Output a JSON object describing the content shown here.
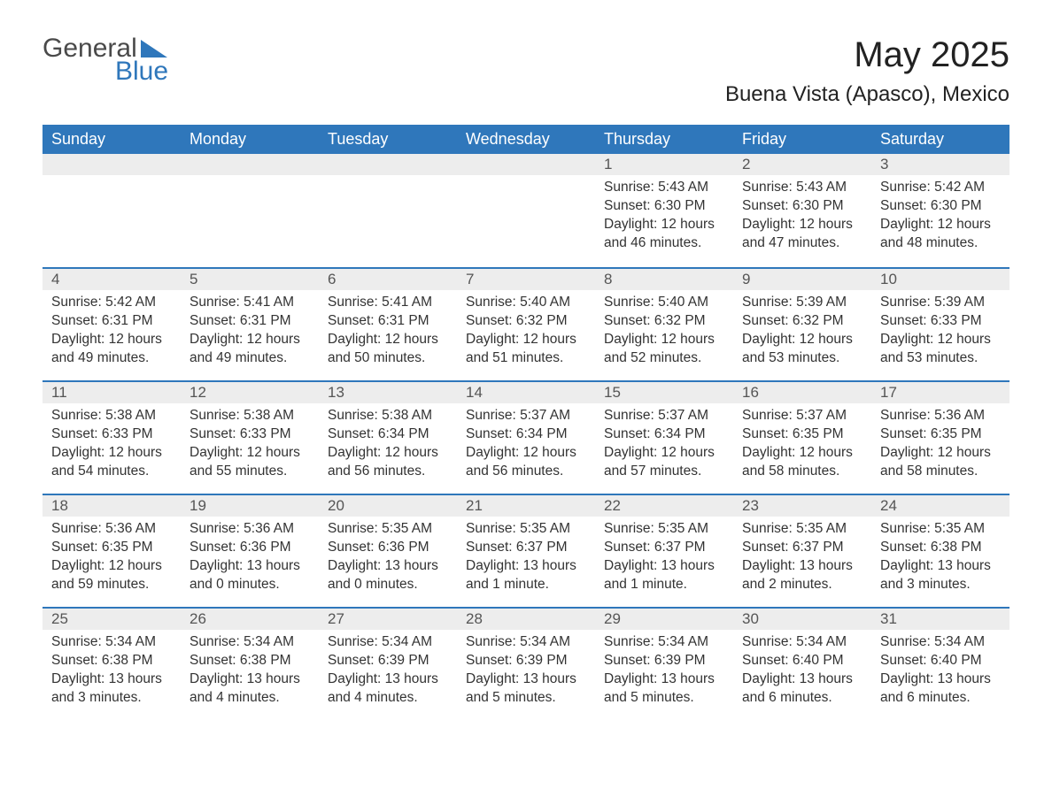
{
  "brand": {
    "word1": "General",
    "word2": "Blue"
  },
  "title": "May 2025",
  "location": "Buena Vista (Apasco), Mexico",
  "colors": {
    "header_bg": "#2f77bb",
    "header_text": "#ffffff",
    "daynum_bg": "#ededed",
    "row_divider": "#2f77bb",
    "body_text": "#333333",
    "page_bg": "#ffffff"
  },
  "weekdays": [
    "Sunday",
    "Monday",
    "Tuesday",
    "Wednesday",
    "Thursday",
    "Friday",
    "Saturday"
  ],
  "first_day_col": 4,
  "days": [
    {
      "n": 1,
      "sunrise": "5:43 AM",
      "sunset": "6:30 PM",
      "daylight": "12 hours and 46 minutes."
    },
    {
      "n": 2,
      "sunrise": "5:43 AM",
      "sunset": "6:30 PM",
      "daylight": "12 hours and 47 minutes."
    },
    {
      "n": 3,
      "sunrise": "5:42 AM",
      "sunset": "6:30 PM",
      "daylight": "12 hours and 48 minutes."
    },
    {
      "n": 4,
      "sunrise": "5:42 AM",
      "sunset": "6:31 PM",
      "daylight": "12 hours and 49 minutes."
    },
    {
      "n": 5,
      "sunrise": "5:41 AM",
      "sunset": "6:31 PM",
      "daylight": "12 hours and 49 minutes."
    },
    {
      "n": 6,
      "sunrise": "5:41 AM",
      "sunset": "6:31 PM",
      "daylight": "12 hours and 50 minutes."
    },
    {
      "n": 7,
      "sunrise": "5:40 AM",
      "sunset": "6:32 PM",
      "daylight": "12 hours and 51 minutes."
    },
    {
      "n": 8,
      "sunrise": "5:40 AM",
      "sunset": "6:32 PM",
      "daylight": "12 hours and 52 minutes."
    },
    {
      "n": 9,
      "sunrise": "5:39 AM",
      "sunset": "6:32 PM",
      "daylight": "12 hours and 53 minutes."
    },
    {
      "n": 10,
      "sunrise": "5:39 AM",
      "sunset": "6:33 PM",
      "daylight": "12 hours and 53 minutes."
    },
    {
      "n": 11,
      "sunrise": "5:38 AM",
      "sunset": "6:33 PM",
      "daylight": "12 hours and 54 minutes."
    },
    {
      "n": 12,
      "sunrise": "5:38 AM",
      "sunset": "6:33 PM",
      "daylight": "12 hours and 55 minutes."
    },
    {
      "n": 13,
      "sunrise": "5:38 AM",
      "sunset": "6:34 PM",
      "daylight": "12 hours and 56 minutes."
    },
    {
      "n": 14,
      "sunrise": "5:37 AM",
      "sunset": "6:34 PM",
      "daylight": "12 hours and 56 minutes."
    },
    {
      "n": 15,
      "sunrise": "5:37 AM",
      "sunset": "6:34 PM",
      "daylight": "12 hours and 57 minutes."
    },
    {
      "n": 16,
      "sunrise": "5:37 AM",
      "sunset": "6:35 PM",
      "daylight": "12 hours and 58 minutes."
    },
    {
      "n": 17,
      "sunrise": "5:36 AM",
      "sunset": "6:35 PM",
      "daylight": "12 hours and 58 minutes."
    },
    {
      "n": 18,
      "sunrise": "5:36 AM",
      "sunset": "6:35 PM",
      "daylight": "12 hours and 59 minutes."
    },
    {
      "n": 19,
      "sunrise": "5:36 AM",
      "sunset": "6:36 PM",
      "daylight": "13 hours and 0 minutes."
    },
    {
      "n": 20,
      "sunrise": "5:35 AM",
      "sunset": "6:36 PM",
      "daylight": "13 hours and 0 minutes."
    },
    {
      "n": 21,
      "sunrise": "5:35 AM",
      "sunset": "6:37 PM",
      "daylight": "13 hours and 1 minute."
    },
    {
      "n": 22,
      "sunrise": "5:35 AM",
      "sunset": "6:37 PM",
      "daylight": "13 hours and 1 minute."
    },
    {
      "n": 23,
      "sunrise": "5:35 AM",
      "sunset": "6:37 PM",
      "daylight": "13 hours and 2 minutes."
    },
    {
      "n": 24,
      "sunrise": "5:35 AM",
      "sunset": "6:38 PM",
      "daylight": "13 hours and 3 minutes."
    },
    {
      "n": 25,
      "sunrise": "5:34 AM",
      "sunset": "6:38 PM",
      "daylight": "13 hours and 3 minutes."
    },
    {
      "n": 26,
      "sunrise": "5:34 AM",
      "sunset": "6:38 PM",
      "daylight": "13 hours and 4 minutes."
    },
    {
      "n": 27,
      "sunrise": "5:34 AM",
      "sunset": "6:39 PM",
      "daylight": "13 hours and 4 minutes."
    },
    {
      "n": 28,
      "sunrise": "5:34 AM",
      "sunset": "6:39 PM",
      "daylight": "13 hours and 5 minutes."
    },
    {
      "n": 29,
      "sunrise": "5:34 AM",
      "sunset": "6:39 PM",
      "daylight": "13 hours and 5 minutes."
    },
    {
      "n": 30,
      "sunrise": "5:34 AM",
      "sunset": "6:40 PM",
      "daylight": "13 hours and 6 minutes."
    },
    {
      "n": 31,
      "sunrise": "5:34 AM",
      "sunset": "6:40 PM",
      "daylight": "13 hours and 6 minutes."
    }
  ],
  "labels": {
    "sunrise": "Sunrise:",
    "sunset": "Sunset:",
    "daylight": "Daylight:"
  }
}
